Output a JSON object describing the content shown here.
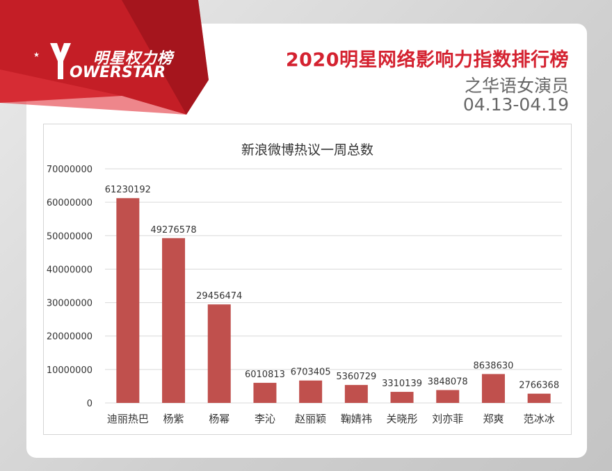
{
  "brand": {
    "name_cn": "明星权力榜",
    "name_en": "OWERSTAR",
    "logo_letter": "Y"
  },
  "header": {
    "title": "2020明星网络影响力指数排行榜",
    "subtitle": "之华语女演员",
    "date_range": "04.13-04.19"
  },
  "colors": {
    "accent": "#d42230",
    "bar": "#c0504d"
  },
  "chart_data": {
    "type": "bar",
    "title": "新浪微博热议一周总数",
    "xlabel": "",
    "ylabel": "",
    "ylim": [
      0,
      70000000
    ],
    "yticks": [
      "0",
      "10000000",
      "20000000",
      "30000000",
      "40000000",
      "50000000",
      "60000000",
      "70000000"
    ],
    "grid": true,
    "legend": "none",
    "categories": [
      "迪丽热巴",
      "杨紫",
      "杨幂",
      "李沁",
      "赵丽颖",
      "鞠婧祎",
      "关晓彤",
      "刘亦菲",
      "郑爽",
      "范冰冰"
    ],
    "values": [
      61230192,
      49276578,
      29456474,
      6010813,
      6703405,
      5360729,
      3310139,
      3848078,
      8638630,
      2766368
    ]
  }
}
